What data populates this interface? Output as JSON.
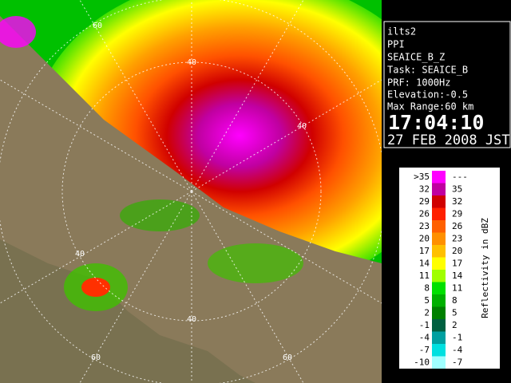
{
  "info": {
    "lines": [
      "ilts2",
      "PPI",
      "SEAICE_B_Z",
      "Task: SEAICE_B",
      "PRF: 1000Hz",
      "Elevation:-0.5",
      "Max Range:60 km"
    ],
    "time": "17:04:10",
    "date": "27 FEB 2008 JST"
  },
  "range_labels": [
    "60",
    "40",
    "40",
    "40",
    "40",
    "60",
    "60"
  ],
  "legend": {
    "title": "Reflectivity in dBZ",
    "rows": [
      {
        "low": ">35",
        "high": "---",
        "color": "#ff00ff"
      },
      {
        "low": "32",
        "high": "35",
        "color": "#c000a0"
      },
      {
        "low": "29",
        "high": "32",
        "color": "#d00000"
      },
      {
        "low": "26",
        "high": "29",
        "color": "#ff2000"
      },
      {
        "low": "23",
        "high": "26",
        "color": "#ff6000"
      },
      {
        "low": "20",
        "high": "23",
        "color": "#ff9000"
      },
      {
        "low": "17",
        "high": "20",
        "color": "#ffc000"
      },
      {
        "low": "14",
        "high": "17",
        "color": "#ffff00"
      },
      {
        "low": "11",
        "high": "14",
        "color": "#a0ff00"
      },
      {
        "low": "8",
        "high": "11",
        "color": "#00e000"
      },
      {
        "low": "5",
        "high": "8",
        "color": "#00b000"
      },
      {
        "low": "2",
        "high": "5",
        "color": "#008000"
      },
      {
        "low": "-1",
        "high": "2",
        "color": "#006040"
      },
      {
        "low": "-4",
        "high": "-1",
        "color": "#00a0a0"
      },
      {
        "low": "-7",
        "high": "-4",
        "color": "#00e0e0"
      },
      {
        "low": "-10",
        "high": "-7",
        "color": "#a0ffff"
      }
    ]
  }
}
